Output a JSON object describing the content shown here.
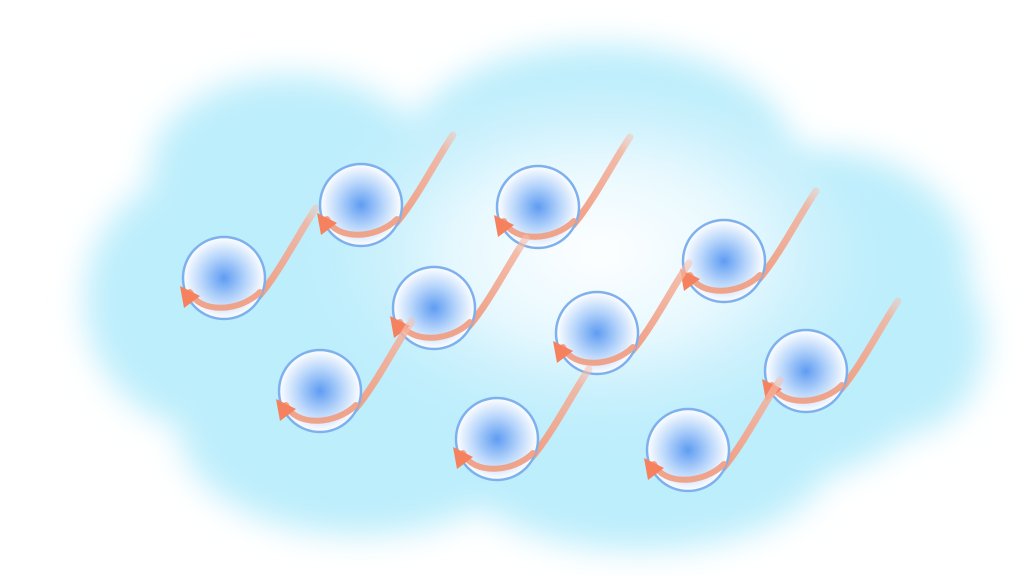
{
  "diagram": {
    "background_color": "#ffffff",
    "cloud": {
      "shape": "cloud",
      "color": "#b9ebfb",
      "center_color": "#ffffff"
    },
    "particle": {
      "count": 10,
      "sphere_fill_center": "#5f9cf2",
      "sphere_fill_edge": "#ffffff",
      "sphere_stroke": "#7fb0ee",
      "tail_color": "#f19b7e",
      "arrowhead_color": "#f5815e",
      "arrowhead_icon": "triangle-arrowhead-icon"
    }
  }
}
